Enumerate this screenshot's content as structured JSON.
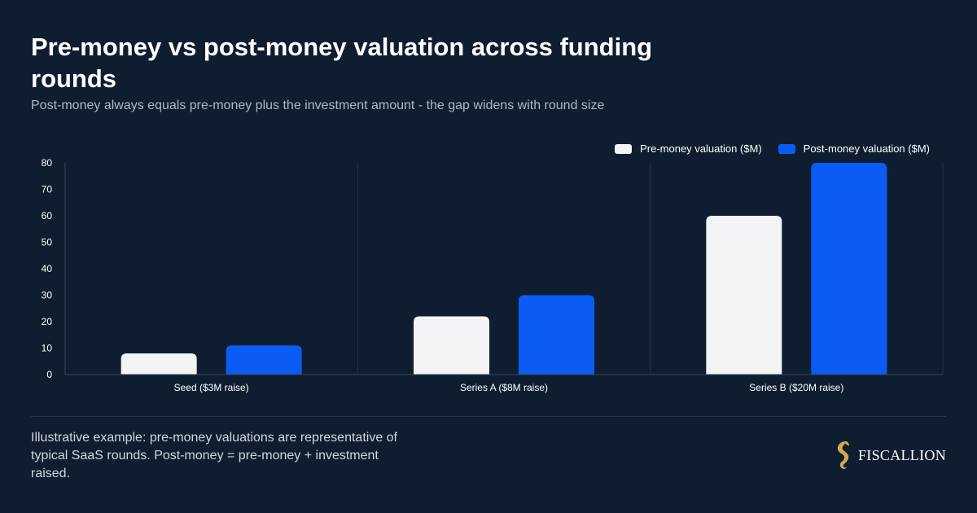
{
  "header": {
    "title": "Pre-money vs post-money valuation across funding rounds",
    "subtitle": "Post-money always equals pre-money plus the investment amount - the gap widens with round size"
  },
  "legend": {
    "items": [
      {
        "label": "Pre-money valuation ($M)",
        "color": "#f3f4f6"
      },
      {
        "label": "Post-money valuation ($M)",
        "color": "#0a5cf5"
      }
    ],
    "placement": "top-right"
  },
  "chart_data": {
    "type": "bar",
    "categories": [
      "Seed ($3M raise)",
      "Series A ($8M raise)",
      "Series B ($20M raise)"
    ],
    "series": [
      {
        "name": "Pre-money valuation ($M)",
        "values": [
          8,
          22,
          60
        ],
        "color": "#f3f4f6"
      },
      {
        "name": "Post-money valuation ($M)",
        "values": [
          11,
          30,
          80
        ],
        "color": "#0a5cf5"
      }
    ],
    "ylim": [
      0,
      80
    ],
    "yticks": [
      0,
      10,
      20,
      30,
      40,
      50,
      60,
      70,
      80
    ],
    "xlabel": "",
    "ylabel": "",
    "grid": "vertical category separators"
  },
  "footer": {
    "note": "Illustrative example: pre-money valuations are representative of typical SaaS rounds. Post-money = pre-money + investment raised.",
    "brand_name": "FISCALLION",
    "brand_icon": "seahorse-logo",
    "brand_color": "#d4a94f"
  }
}
